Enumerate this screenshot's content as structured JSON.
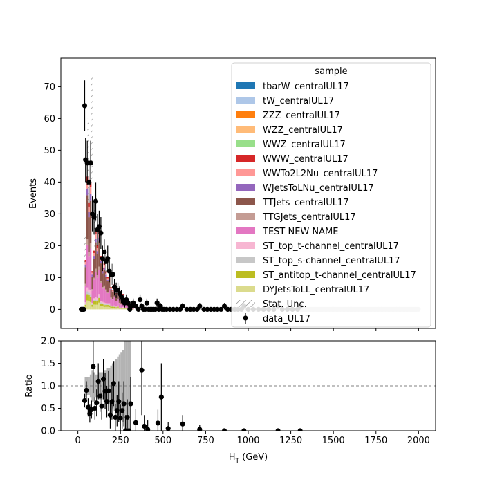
{
  "chart_data": [
    {
      "panel": "main",
      "type": "bar",
      "stacked": true,
      "xlabel": "",
      "ylabel": "Events",
      "xlim": [
        -100,
        2100
      ],
      "ylim": [
        -6,
        79
      ],
      "yticks": [
        0,
        10,
        20,
        30,
        40,
        50,
        60,
        70
      ],
      "grid": false,
      "legend": {
        "title": "sample",
        "placement": "top-right",
        "entries": [
          {
            "label": "tbarW_centralUL17",
            "color": "#1f77b4",
            "kind": "patch"
          },
          {
            "label": "tW_centralUL17",
            "color": "#aec7e8",
            "kind": "patch"
          },
          {
            "label": "ZZZ_centralUL17",
            "color": "#ff7f0e",
            "kind": "patch"
          },
          {
            "label": "WZZ_centralUL17",
            "color": "#ffbb78",
            "kind": "patch"
          },
          {
            "label": "WWZ_centralUL17",
            "color": "#98df8a",
            "kind": "patch"
          },
          {
            "label": "WWW_centralUL17",
            "color": "#d62728",
            "kind": "patch"
          },
          {
            "label": "WWTo2L2Nu_centralUL17",
            "color": "#ff9896",
            "kind": "patch"
          },
          {
            "label": "WJetsToLNu_centralUL17",
            "color": "#9467bd",
            "kind": "patch"
          },
          {
            "label": "TTJets_centralUL17",
            "color": "#8c564b",
            "kind": "patch"
          },
          {
            "label": "TTGJets_centralUL17",
            "color": "#c49c94",
            "kind": "patch"
          },
          {
            "label": "TEST NEW NAME",
            "color": "#e377c2",
            "kind": "patch"
          },
          {
            "label": "ST_top_t-channel_centralUL17",
            "color": "#f7b6d2",
            "kind": "patch"
          },
          {
            "label": "ST_top_s-channel_centralUL17",
            "color": "#c7c7c7",
            "kind": "patch"
          },
          {
            "label": "ST_antitop_t-channel_centralUL17",
            "color": "#bcbd22",
            "kind": "patch"
          },
          {
            "label": "DYJetsToLL_centralUL17",
            "color": "#dbdb8d",
            "kind": "patch"
          },
          {
            "label": "Stat. Unc.",
            "color": "#7f7f7f",
            "kind": "hatch"
          },
          {
            "label": "data_UL17",
            "color": "#000000",
            "kind": "errorbar"
          }
        ]
      },
      "mc_total": [
        [
          40,
          16
        ],
        [
          50,
          42
        ],
        [
          60,
          33
        ],
        [
          70,
          41
        ],
        [
          80,
          12
        ],
        [
          90,
          18
        ],
        [
          100,
          25
        ],
        [
          110,
          20
        ],
        [
          120,
          24
        ],
        [
          130,
          17
        ],
        [
          140,
          13
        ],
        [
          150,
          15
        ],
        [
          160,
          12
        ],
        [
          170,
          10
        ],
        [
          180,
          13
        ],
        [
          190,
          7
        ],
        [
          200,
          6
        ],
        [
          210,
          8
        ],
        [
          220,
          5
        ],
        [
          230,
          6
        ],
        [
          240,
          4
        ],
        [
          250,
          3
        ],
        [
          260,
          5
        ],
        [
          270,
          2.5
        ],
        [
          280,
          3
        ],
        [
          290,
          2
        ],
        [
          300,
          1.5
        ],
        [
          310,
          2
        ],
        [
          320,
          1
        ]
      ],
      "stat_unc_peak": [
        [
          40,
          24
        ],
        [
          60,
          60
        ],
        [
          80,
          73
        ],
        [
          100,
          33
        ]
      ],
      "data": [
        {
          "x": 20,
          "y": 0,
          "err": 0
        },
        {
          "x": 25,
          "y": 0,
          "err": 0
        },
        {
          "x": 30,
          "y": 0,
          "err": 0
        },
        {
          "x": 35,
          "y": 0,
          "err": 0
        },
        {
          "x": 40,
          "y": 64,
          "err": 8
        },
        {
          "x": 45,
          "y": 47,
          "err": 7
        },
        {
          "x": 55,
          "y": 46,
          "err": 7
        },
        {
          "x": 65,
          "y": 40,
          "err": 6.5
        },
        {
          "x": 75,
          "y": 46,
          "err": 7
        },
        {
          "x": 85,
          "y": 30,
          "err": 5.5
        },
        {
          "x": 95,
          "y": 29,
          "err": 5.5
        },
        {
          "x": 105,
          "y": 34,
          "err": 6
        },
        {
          "x": 115,
          "y": 25,
          "err": 5
        },
        {
          "x": 125,
          "y": 26,
          "err": 5
        },
        {
          "x": 135,
          "y": 24,
          "err": 5
        },
        {
          "x": 145,
          "y": 16,
          "err": 4
        },
        {
          "x": 155,
          "y": 18,
          "err": 4
        },
        {
          "x": 165,
          "y": 15,
          "err": 4
        },
        {
          "x": 175,
          "y": 16,
          "err": 4
        },
        {
          "x": 185,
          "y": 12,
          "err": 3.5
        },
        {
          "x": 195,
          "y": 11,
          "err": 3.3
        },
        {
          "x": 205,
          "y": 11,
          "err": 3.3
        },
        {
          "x": 215,
          "y": 7,
          "err": 2.6
        },
        {
          "x": 225,
          "y": 6,
          "err": 2.4
        },
        {
          "x": 235,
          "y": 6,
          "err": 2.4
        },
        {
          "x": 245,
          "y": 5,
          "err": 2.2
        },
        {
          "x": 255,
          "y": 4,
          "err": 2
        },
        {
          "x": 265,
          "y": 3,
          "err": 1.7
        },
        {
          "x": 275,
          "y": 2,
          "err": 1.4
        },
        {
          "x": 285,
          "y": 3,
          "err": 1.7
        },
        {
          "x": 295,
          "y": 2,
          "err": 1.4
        },
        {
          "x": 305,
          "y": 0,
          "err": 0
        },
        {
          "x": 315,
          "y": 1,
          "err": 1
        },
        {
          "x": 325,
          "y": 2,
          "err": 1.4
        },
        {
          "x": 340,
          "y": 1,
          "err": 1
        },
        {
          "x": 355,
          "y": 0,
          "err": 0
        },
        {
          "x": 365,
          "y": 3,
          "err": 1.7
        },
        {
          "x": 375,
          "y": 1,
          "err": 1
        },
        {
          "x": 385,
          "y": 0,
          "err": 0
        },
        {
          "x": 395,
          "y": 0,
          "err": 0
        },
        {
          "x": 405,
          "y": 2,
          "err": 1.4
        },
        {
          "x": 415,
          "y": 0,
          "err": 0
        },
        {
          "x": 425,
          "y": 0,
          "err": 0
        },
        {
          "x": 435,
          "y": 0,
          "err": 0
        },
        {
          "x": 445,
          "y": 0,
          "err": 0
        },
        {
          "x": 455,
          "y": 0,
          "err": 0
        },
        {
          "x": 465,
          "y": 2,
          "err": 1.4
        },
        {
          "x": 475,
          "y": 0,
          "err": 0
        },
        {
          "x": 485,
          "y": 1,
          "err": 1
        },
        {
          "x": 495,
          "y": 0,
          "err": 0
        },
        {
          "x": 505,
          "y": 0,
          "err": 0
        },
        {
          "x": 520,
          "y": 0,
          "err": 0
        },
        {
          "x": 540,
          "y": 0,
          "err": 0
        },
        {
          "x": 560,
          "y": 0,
          "err": 0
        },
        {
          "x": 580,
          "y": 0,
          "err": 0
        },
        {
          "x": 600,
          "y": 0,
          "err": 0
        },
        {
          "x": 615,
          "y": 1,
          "err": 1
        },
        {
          "x": 640,
          "y": 0,
          "err": 0
        },
        {
          "x": 660,
          "y": 0,
          "err": 0
        },
        {
          "x": 680,
          "y": 0,
          "err": 0
        },
        {
          "x": 700,
          "y": 0,
          "err": 0
        },
        {
          "x": 715,
          "y": 1,
          "err": 1
        },
        {
          "x": 740,
          "y": 0,
          "err": 0
        },
        {
          "x": 760,
          "y": 0,
          "err": 0
        },
        {
          "x": 780,
          "y": 0,
          "err": 0
        },
        {
          "x": 800,
          "y": 0,
          "err": 0
        },
        {
          "x": 820,
          "y": 0,
          "err": 0
        },
        {
          "x": 840,
          "y": 0,
          "err": 0
        },
        {
          "x": 860,
          "y": 1,
          "err": 1
        },
        {
          "x": 880,
          "y": 0,
          "err": 0
        },
        {
          "x": 900,
          "y": 0,
          "err": 0
        },
        {
          "x": 920,
          "y": 0,
          "err": 0
        },
        {
          "x": 940,
          "y": 0,
          "err": 0
        },
        {
          "x": 960,
          "y": 0,
          "err": 0
        },
        {
          "x": 975,
          "y": 1,
          "err": 1
        },
        {
          "x": 1000,
          "y": 0,
          "err": 0
        },
        {
          "x": 1030,
          "y": 0,
          "err": 0
        },
        {
          "x": 1060,
          "y": 0,
          "err": 0
        },
        {
          "x": 1090,
          "y": 0,
          "err": 0
        },
        {
          "x": 1120,
          "y": 0,
          "err": 0
        },
        {
          "x": 1150,
          "y": 0,
          "err": 0
        },
        {
          "x": 1175,
          "y": 1,
          "err": 1
        },
        {
          "x": 1200,
          "y": 0,
          "err": 0
        },
        {
          "x": 1230,
          "y": 0,
          "err": 0
        },
        {
          "x": 1260,
          "y": 0,
          "err": 0
        },
        {
          "x": 1290,
          "y": 0,
          "err": 0
        },
        {
          "x": 1305,
          "y": 1,
          "err": 1
        }
      ],
      "baseline_markers_range": [
        1310,
        2000
      ]
    },
    {
      "panel": "ratio",
      "type": "scatter",
      "xlabel": "H$_T$ (GeV)",
      "ylabel": "Ratio",
      "xlim": [
        -100,
        2100
      ],
      "ylim": [
        0,
        2
      ],
      "xticks": [
        0,
        250,
        500,
        750,
        1000,
        1250,
        1500,
        1750,
        2000
      ],
      "yticks": [
        "0.0",
        "0.5",
        "1.0",
        "1.5",
        "2.0"
      ],
      "reference_line": 1.0,
      "unc_band": [
        [
          40,
          0.75,
          1.2
        ],
        [
          50,
          0.8,
          1.2
        ],
        [
          60,
          0.8,
          1.2
        ],
        [
          70,
          0.75,
          1.25
        ],
        [
          80,
          0.65,
          1.35
        ],
        [
          90,
          0.65,
          1.3
        ],
        [
          100,
          0.75,
          1.25
        ],
        [
          110,
          0.75,
          1.25
        ],
        [
          120,
          0.7,
          1.3
        ],
        [
          130,
          0.7,
          1.3
        ],
        [
          140,
          0.7,
          1.3
        ],
        [
          150,
          0.65,
          1.35
        ],
        [
          160,
          0.65,
          1.35
        ],
        [
          170,
          0.6,
          1.4
        ],
        [
          180,
          0.6,
          1.4
        ],
        [
          190,
          0.55,
          1.45
        ],
        [
          200,
          0.5,
          1.5
        ],
        [
          210,
          0.45,
          1.55
        ],
        [
          220,
          0.4,
          1.6
        ],
        [
          230,
          0.35,
          1.65
        ],
        [
          240,
          0.3,
          1.7
        ],
        [
          250,
          0.25,
          1.75
        ],
        [
          260,
          0.2,
          1.8
        ],
        [
          270,
          0,
          2.0
        ],
        [
          280,
          0,
          2.0
        ],
        [
          290,
          0,
          2.0
        ],
        [
          300,
          0,
          2.0
        ]
      ],
      "points": [
        {
          "x": 40,
          "y": 0.67,
          "err": 0.15
        },
        {
          "x": 50,
          "y": 0.9,
          "err": 0.2
        },
        {
          "x": 60,
          "y": 0.52,
          "err": 0.2
        },
        {
          "x": 70,
          "y": 0.38,
          "err": 0.2
        },
        {
          "x": 80,
          "y": 0.47,
          "err": 0.2
        },
        {
          "x": 90,
          "y": 1.43,
          "err": 0.6
        },
        {
          "x": 100,
          "y": 0.5,
          "err": 0.25
        },
        {
          "x": 110,
          "y": 0.62,
          "err": 0.3
        },
        {
          "x": 120,
          "y": 1.1,
          "err": 0.4
        },
        {
          "x": 130,
          "y": 0.77,
          "err": 0.35
        },
        {
          "x": 140,
          "y": 0.55,
          "err": 0.3
        },
        {
          "x": 150,
          "y": 1.15,
          "err": 0.45
        },
        {
          "x": 160,
          "y": 0.88,
          "err": 0.4
        },
        {
          "x": 170,
          "y": 0.65,
          "err": 0.35
        },
        {
          "x": 180,
          "y": 0.89,
          "err": 0.45
        },
        {
          "x": 190,
          "y": 0.35,
          "err": 0.3
        },
        {
          "x": 200,
          "y": 0.65,
          "err": 0.4
        },
        {
          "x": 210,
          "y": 1.05,
          "err": 0.5
        },
        {
          "x": 220,
          "y": 0.3,
          "err": 0.3
        },
        {
          "x": 230,
          "y": 0.45,
          "err": 0.35
        },
        {
          "x": 240,
          "y": 0.65,
          "err": 0.45
        },
        {
          "x": 250,
          "y": 0.28,
          "err": 0.3
        },
        {
          "x": 260,
          "y": 0.45,
          "err": 0.4
        },
        {
          "x": 270,
          "y": 0.6,
          "err": 0.5
        },
        {
          "x": 280,
          "y": 0.0,
          "err": 0.35
        },
        {
          "x": 290,
          "y": 0.3,
          "err": 0.4
        },
        {
          "x": 300,
          "y": 0.0,
          "err": 0.0
        },
        {
          "x": 310,
          "y": 0.6,
          "err": 0.6
        },
        {
          "x": 340,
          "y": 0.18,
          "err": 0.3
        },
        {
          "x": 375,
          "y": 1.35,
          "err": 1.0
        },
        {
          "x": 390,
          "y": 0.1,
          "err": 0.25
        },
        {
          "x": 410,
          "y": 0.03,
          "err": 0.2
        },
        {
          "x": 470,
          "y": 0.17,
          "err": 0.3
        },
        {
          "x": 490,
          "y": 0.75,
          "err": 0.75
        },
        {
          "x": 530,
          "y": 0.05,
          "err": 0.15
        },
        {
          "x": 615,
          "y": 0.15,
          "err": 0.2
        },
        {
          "x": 715,
          "y": 0.03,
          "err": 0.1
        },
        {
          "x": 860,
          "y": 0.0,
          "err": 0.0
        },
        {
          "x": 975,
          "y": 0.0,
          "err": 0.0
        },
        {
          "x": 1175,
          "y": 0.0,
          "err": 0.0
        },
        {
          "x": 1305,
          "y": 0.0,
          "err": 0.0
        }
      ]
    }
  ]
}
